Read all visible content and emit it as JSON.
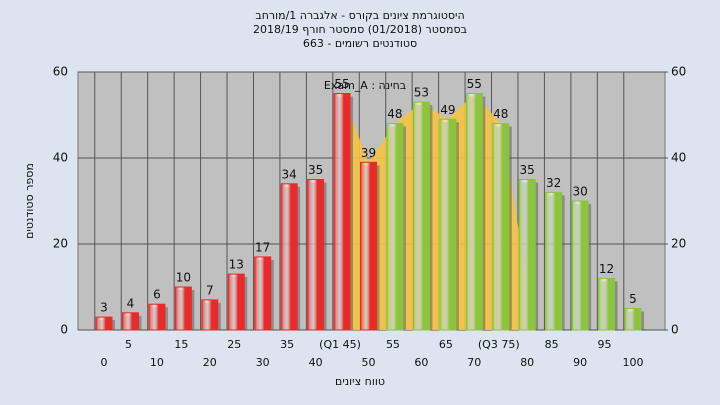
{
  "chart_data": {
    "type": "bar",
    "title": "היסטוגרמת ציונים בקורס - אלגברה 1/מורחב",
    "subtitle": "בסמסטר  (01/2018)  סמסטר חורף 2018/19",
    "subtitle2": "סטודנטים רשומים - 663",
    "annotation": "Exam_A : בחינה",
    "y_label": "מספר סטודנטים",
    "x_label": "טווח ציונים",
    "categories": [
      "0",
      "5",
      "10",
      "15",
      "20",
      "25",
      "30",
      "35",
      "40",
      "(Q1 45)",
      "50",
      "55",
      "60",
      "65",
      "70",
      "(Q3 75)",
      "80",
      "85",
      "90",
      "95",
      "100"
    ],
    "values": [
      3,
      4,
      6,
      10,
      7,
      13,
      17,
      34,
      35,
      55,
      39,
      48,
      53,
      49,
      55,
      48,
      35,
      32,
      30,
      12,
      5
    ],
    "colors": [
      "#e82a2a",
      "#e82a2a",
      "#e82a2a",
      "#e82a2a",
      "#e82a2a",
      "#e82a2a",
      "#e82a2a",
      "#e82a2a",
      "#e82a2a",
      "#e82a2a",
      "#e82a2a",
      "#8cc43c",
      "#8cc43c",
      "#8cc43c",
      "#8cc43c",
      "#8cc43c",
      "#8cc43c",
      "#8cc43c",
      "#8cc43c",
      "#8cc43c",
      "#8cc43c"
    ],
    "ylim": [
      0,
      60
    ],
    "yticks": [
      0,
      20,
      40,
      60
    ],
    "y2lim": [
      0,
      60
    ],
    "y2ticks": [
      0,
      20,
      40,
      60
    ],
    "grid": true
  }
}
